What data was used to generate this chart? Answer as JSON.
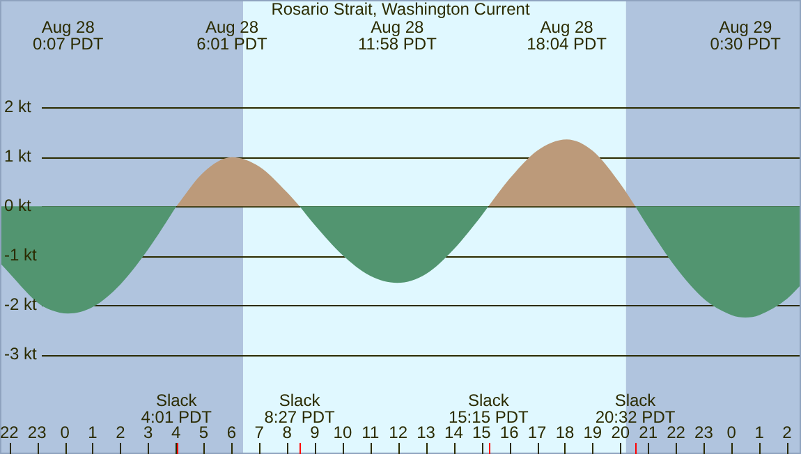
{
  "chart_data": {
    "type": "area",
    "title": "Rosario Strait, Washington Current",
    "x": [
      "--08-27T21:40",
      "--08-27T21:52",
      "--08-27T23:00",
      "--08-27T23:30",
      "--08-28T00:07",
      "--08-28T01:00",
      "--08-28T02:00",
      "--08-28T03:00",
      "--08-28T04:01",
      "--08-28T05:00",
      "--08-28T06:01",
      "--08-28T07:00",
      "--08-28T08:00",
      "--08-28T08:27",
      "--08-28T09:00",
      "--08-28T10:00",
      "--08-28T11:00",
      "--08-28T11:58",
      "--08-28T13:00",
      "--08-28T14:00",
      "--08-28T15:00",
      "--08-28T15:15",
      "--08-28T16:00",
      "--08-28T17:00",
      "--08-28T18:04",
      "--08-28T19:00",
      "--08-28T20:00",
      "--08-28T20:32",
      "--08-28T21:00",
      "--08-28T22:00",
      "--08-28T23:00",
      "--08-29T00:00",
      "--08-29T00:30",
      "--08-29T01:00",
      "--08-29T02:00",
      "--08-29T02:30"
    ],
    "series": [
      {
        "color": "#529570",
        "values": [
          -1.15,
          -1.27,
          -1.94,
          -2.1,
          -2.17,
          -2.04,
          -1.58,
          -0.87,
          0,
          null,
          null,
          null,
          null,
          0,
          -0.38,
          -0.99,
          -1.41,
          -1.55,
          -1.37,
          -0.87,
          -0.19,
          0,
          null,
          null,
          null,
          null,
          null,
          0,
          -0.42,
          -1.24,
          -1.87,
          -2.2,
          -2.25,
          -2.2,
          -1.87,
          -1.59
        ]
      },
      {
        "color": "#bc9a7a",
        "values": [
          null,
          null,
          null,
          null,
          null,
          null,
          null,
          null,
          0,
          0.69,
          0.99,
          0.8,
          0.28,
          0,
          null,
          null,
          null,
          null,
          null,
          null,
          null,
          0,
          0.55,
          1.12,
          1.35,
          1.12,
          0.45,
          0,
          null,
          null,
          null,
          null,
          null,
          null,
          null,
          null
        ]
      }
    ],
    "xlim": [
      "--08-27T21:40",
      "--08-29T02:30"
    ],
    "xticks": [
      {
        "value": "--08-27T22:00",
        "label": "22"
      },
      {
        "value": "--08-27T23:00",
        "label": "23"
      },
      {
        "value": "--08-28T00:00",
        "label": "0"
      },
      {
        "value": "--08-28T01:00",
        "label": "1"
      },
      {
        "value": "--08-28T02:00",
        "label": "2"
      },
      {
        "value": "--08-28T03:00",
        "label": "3"
      },
      {
        "value": "--08-28T04:00",
        "label": "4"
      },
      {
        "value": "--08-28T05:00",
        "label": "5"
      },
      {
        "value": "--08-28T06:00",
        "label": "6"
      },
      {
        "value": "--08-28T07:00",
        "label": "7"
      },
      {
        "value": "--08-28T08:00",
        "label": "8"
      },
      {
        "value": "--08-28T09:00",
        "label": "9"
      },
      {
        "value": "--08-28T10:00",
        "label": "10"
      },
      {
        "value": "--08-28T11:00",
        "label": "11"
      },
      {
        "value": "--08-28T12:00",
        "label": "12"
      },
      {
        "value": "--08-28T13:00",
        "label": "13"
      },
      {
        "value": "--08-28T14:00",
        "label": "14"
      },
      {
        "value": "--08-28T15:00",
        "label": "15"
      },
      {
        "value": "--08-28T16:00",
        "label": "16"
      },
      {
        "value": "--08-28T17:00",
        "label": "17"
      },
      {
        "value": "--08-28T18:00",
        "label": "18"
      },
      {
        "value": "--08-28T19:00",
        "label": "19"
      },
      {
        "value": "--08-28T20:00",
        "label": "20"
      },
      {
        "value": "--08-28T21:00",
        "label": "21"
      },
      {
        "value": "--08-28T22:00",
        "label": "22"
      },
      {
        "value": "--08-28T23:00",
        "label": "23"
      },
      {
        "value": "--08-29T00:00",
        "label": "0"
      },
      {
        "value": "--08-29T01:00",
        "label": "1"
      },
      {
        "value": "--08-29T02:00",
        "label": "2"
      }
    ],
    "ylim": [
      -5.01,
      4.17
    ],
    "yticks": [
      {
        "value": -3,
        "label": "-3 kt"
      },
      {
        "value": -2,
        "label": "-2 kt"
      },
      {
        "value": -1,
        "label": "-1 kt"
      },
      {
        "value": 0,
        "label": "0 kt"
      },
      {
        "value": 1,
        "label": "1 kt"
      },
      {
        "value": 2,
        "label": "2 kt"
      }
    ],
    "grid": "y",
    "marker": "none",
    "bands": [
      {
        "axis": "x",
        "from": "--08-27T21:40",
        "to": "--08-28T06:25",
        "color": "#b0c4de"
      },
      {
        "axis": "x",
        "from": "--08-28T06:25",
        "to": "--08-28T20:12",
        "color": "#e0f8ff"
      },
      {
        "axis": "x",
        "from": "--08-28T20:12",
        "to": "--08-29T02:30",
        "color": "#b0c4de"
      }
    ],
    "annotations": [
      "Aug 28\n0:07 PDT",
      "Aug 28\n6:01 PDT",
      "Aug 28\n11:58 PDT",
      "Aug 28\n18:04 PDT",
      "Aug 29\n0:30 PDT",
      "Slack\n4:01 PDT",
      "Slack\n8:27 PDT",
      "Slack\n15:15 PDT",
      "Slack\n20:32 PDT"
    ]
  }
}
